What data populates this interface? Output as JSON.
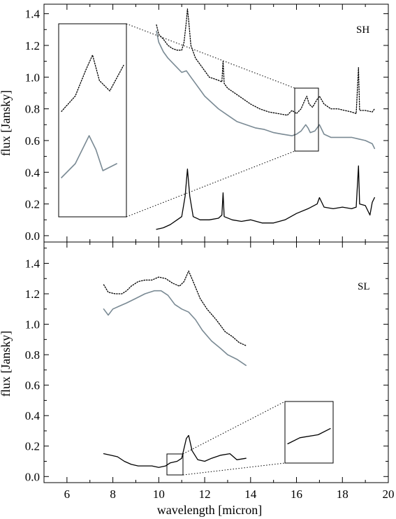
{
  "figure": {
    "x_axis_label": "wavelength [micron]",
    "x_ticks": [
      "6",
      "8",
      "10",
      "12",
      "14",
      "16",
      "18",
      "20"
    ]
  },
  "chart_data": [
    {
      "type": "line",
      "panel_label": "SH",
      "ylabel": "flux [Jansky]",
      "xlim": [
        5,
        20
      ],
      "ylim": [
        -0.04,
        1.46
      ],
      "y_ticks": [
        "0.0",
        "0.2",
        "0.4",
        "0.6",
        "0.8",
        "1.0",
        "1.2",
        "1.4"
      ],
      "styles": {
        "dotted": "#000000",
        "gray": "#7a8a94",
        "solid": "#000000"
      },
      "series": [
        {
          "style": "dotted",
          "points": [
            [
              9.9,
              1.33
            ],
            [
              10.0,
              1.27
            ],
            [
              10.2,
              1.24
            ],
            [
              10.4,
              1.2
            ],
            [
              10.6,
              1.18
            ],
            [
              10.8,
              1.17
            ],
            [
              11.0,
              1.17
            ],
            [
              11.1,
              1.22
            ],
            [
              11.2,
              1.35
            ],
            [
              11.25,
              1.43
            ],
            [
              11.3,
              1.36
            ],
            [
              11.4,
              1.2
            ],
            [
              11.6,
              1.12
            ],
            [
              11.8,
              1.08
            ],
            [
              12.0,
              1.04
            ],
            [
              12.2,
              1.0
            ],
            [
              12.4,
              0.99
            ],
            [
              12.6,
              0.98
            ],
            [
              12.75,
              0.97
            ],
            [
              12.8,
              1.1
            ],
            [
              12.85,
              0.96
            ],
            [
              13.0,
              0.93
            ],
            [
              13.3,
              0.9
            ],
            [
              13.6,
              0.87
            ],
            [
              14.0,
              0.83
            ],
            [
              14.4,
              0.8
            ],
            [
              14.8,
              0.78
            ],
            [
              15.2,
              0.77
            ],
            [
              15.6,
              0.76
            ],
            [
              15.8,
              0.79
            ],
            [
              16.0,
              0.77
            ],
            [
              16.2,
              0.8
            ],
            [
              16.35,
              0.85
            ],
            [
              16.45,
              0.88
            ],
            [
              16.55,
              0.83
            ],
            [
              16.7,
              0.81
            ],
            [
              16.9,
              0.86
            ],
            [
              17.0,
              0.88
            ],
            [
              17.2,
              0.83
            ],
            [
              17.5,
              0.8
            ],
            [
              17.8,
              0.8
            ],
            [
              18.1,
              0.79
            ],
            [
              18.4,
              0.78
            ],
            [
              18.6,
              0.77
            ],
            [
              18.7,
              1.06
            ],
            [
              18.75,
              0.79
            ],
            [
              19.0,
              0.79
            ],
            [
              19.3,
              0.78
            ],
            [
              19.4,
              0.8
            ]
          ]
        },
        {
          "style": "gray",
          "points": [
            [
              9.9,
              1.29
            ],
            [
              10.0,
              1.22
            ],
            [
              10.2,
              1.16
            ],
            [
              10.4,
              1.12
            ],
            [
              10.6,
              1.09
            ],
            [
              10.8,
              1.06
            ],
            [
              11.0,
              1.03
            ],
            [
              11.2,
              1.04
            ],
            [
              11.4,
              1.0
            ],
            [
              11.6,
              0.96
            ],
            [
              11.8,
              0.92
            ],
            [
              12.0,
              0.88
            ],
            [
              12.3,
              0.84
            ],
            [
              12.6,
              0.8
            ],
            [
              13.0,
              0.76
            ],
            [
              13.4,
              0.72
            ],
            [
              13.8,
              0.7
            ],
            [
              14.2,
              0.68
            ],
            [
              14.6,
              0.67
            ],
            [
              15.0,
              0.65
            ],
            [
              15.4,
              0.64
            ],
            [
              15.8,
              0.63
            ],
            [
              16.0,
              0.64
            ],
            [
              16.2,
              0.66
            ],
            [
              16.4,
              0.7
            ],
            [
              16.5,
              0.68
            ],
            [
              16.6,
              0.65
            ],
            [
              16.8,
              0.66
            ],
            [
              17.0,
              0.7
            ],
            [
              17.2,
              0.64
            ],
            [
              17.5,
              0.62
            ],
            [
              17.8,
              0.62
            ],
            [
              18.1,
              0.62
            ],
            [
              18.4,
              0.62
            ],
            [
              18.7,
              0.61
            ],
            [
              19.0,
              0.6
            ],
            [
              19.3,
              0.58
            ],
            [
              19.4,
              0.55
            ]
          ]
        },
        {
          "style": "solid",
          "points": [
            [
              9.9,
              0.04
            ],
            [
              10.2,
              0.05
            ],
            [
              10.5,
              0.07
            ],
            [
              10.8,
              0.1
            ],
            [
              11.0,
              0.12
            ],
            [
              11.15,
              0.25
            ],
            [
              11.25,
              0.42
            ],
            [
              11.35,
              0.25
            ],
            [
              11.5,
              0.12
            ],
            [
              11.8,
              0.1
            ],
            [
              12.2,
              0.1
            ],
            [
              12.6,
              0.11
            ],
            [
              12.75,
              0.13
            ],
            [
              12.8,
              0.27
            ],
            [
              12.85,
              0.12
            ],
            [
              13.2,
              0.1
            ],
            [
              13.6,
              0.09
            ],
            [
              14.0,
              0.1
            ],
            [
              14.5,
              0.08
            ],
            [
              15.0,
              0.08
            ],
            [
              15.5,
              0.1
            ],
            [
              16.0,
              0.14
            ],
            [
              16.5,
              0.17
            ],
            [
              16.9,
              0.2
            ],
            [
              17.0,
              0.24
            ],
            [
              17.2,
              0.18
            ],
            [
              17.6,
              0.17
            ],
            [
              18.0,
              0.18
            ],
            [
              18.4,
              0.17
            ],
            [
              18.6,
              0.18
            ],
            [
              18.7,
              0.44
            ],
            [
              18.75,
              0.2
            ],
            [
              19.0,
              0.19
            ],
            [
              19.2,
              0.13
            ],
            [
              19.3,
              0.21
            ],
            [
              19.4,
              0.24
            ]
          ]
        }
      ]
    },
    {
      "type": "line",
      "panel_label": "SL",
      "ylabel": "flux [Jansky]",
      "xlim": [
        5,
        20
      ],
      "ylim": [
        -0.04,
        1.54
      ],
      "y_ticks": [
        "0.0",
        "0.2",
        "0.4",
        "0.6",
        "0.8",
        "1.0",
        "1.2",
        "1.4"
      ],
      "styles": {
        "dotted": "#000000",
        "gray": "#7a8a94",
        "solid": "#000000"
      },
      "series": [
        {
          "style": "dotted",
          "points": [
            [
              7.6,
              1.26
            ],
            [
              7.8,
              1.21
            ],
            [
              8.1,
              1.2
            ],
            [
              8.4,
              1.2
            ],
            [
              8.6,
              1.22
            ],
            [
              8.8,
              1.25
            ],
            [
              9.1,
              1.28
            ],
            [
              9.4,
              1.29
            ],
            [
              9.7,
              1.29
            ],
            [
              10.0,
              1.31
            ],
            [
              10.3,
              1.3
            ],
            [
              10.6,
              1.27
            ],
            [
              10.9,
              1.25
            ],
            [
              11.1,
              1.28
            ],
            [
              11.3,
              1.35
            ],
            [
              11.5,
              1.28
            ],
            [
              11.8,
              1.17
            ],
            [
              12.1,
              1.1
            ],
            [
              12.5,
              1.03
            ],
            [
              12.9,
              0.95
            ],
            [
              13.2,
              0.92
            ],
            [
              13.5,
              0.88
            ],
            [
              13.8,
              0.86
            ]
          ]
        },
        {
          "style": "gray",
          "points": [
            [
              7.6,
              1.1
            ],
            [
              7.8,
              1.06
            ],
            [
              8.0,
              1.1
            ],
            [
              8.3,
              1.12
            ],
            [
              8.6,
              1.14
            ],
            [
              9.0,
              1.17
            ],
            [
              9.4,
              1.2
            ],
            [
              9.8,
              1.22
            ],
            [
              10.1,
              1.22
            ],
            [
              10.4,
              1.19
            ],
            [
              10.7,
              1.13
            ],
            [
              11.0,
              1.1
            ],
            [
              11.3,
              1.08
            ],
            [
              11.6,
              1.03
            ],
            [
              11.9,
              0.96
            ],
            [
              12.3,
              0.89
            ],
            [
              12.7,
              0.84
            ],
            [
              13.0,
              0.8
            ],
            [
              13.4,
              0.77
            ],
            [
              13.8,
              0.73
            ]
          ]
        },
        {
          "style": "solid",
          "points": [
            [
              7.6,
              0.15
            ],
            [
              7.9,
              0.14
            ],
            [
              8.2,
              0.13
            ],
            [
              8.5,
              0.1
            ],
            [
              8.8,
              0.08
            ],
            [
              9.1,
              0.07
            ],
            [
              9.4,
              0.07
            ],
            [
              9.7,
              0.07
            ],
            [
              10.0,
              0.06
            ],
            [
              10.3,
              0.07
            ],
            [
              10.5,
              0.09
            ],
            [
              10.8,
              0.1
            ],
            [
              11.0,
              0.12
            ],
            [
              11.2,
              0.25
            ],
            [
              11.3,
              0.27
            ],
            [
              11.45,
              0.17
            ],
            [
              11.7,
              0.11
            ],
            [
              12.0,
              0.1
            ],
            [
              12.3,
              0.12
            ],
            [
              12.7,
              0.14
            ],
            [
              13.1,
              0.15
            ],
            [
              13.4,
              0.11
            ],
            [
              13.8,
              0.12
            ]
          ]
        }
      ]
    }
  ]
}
